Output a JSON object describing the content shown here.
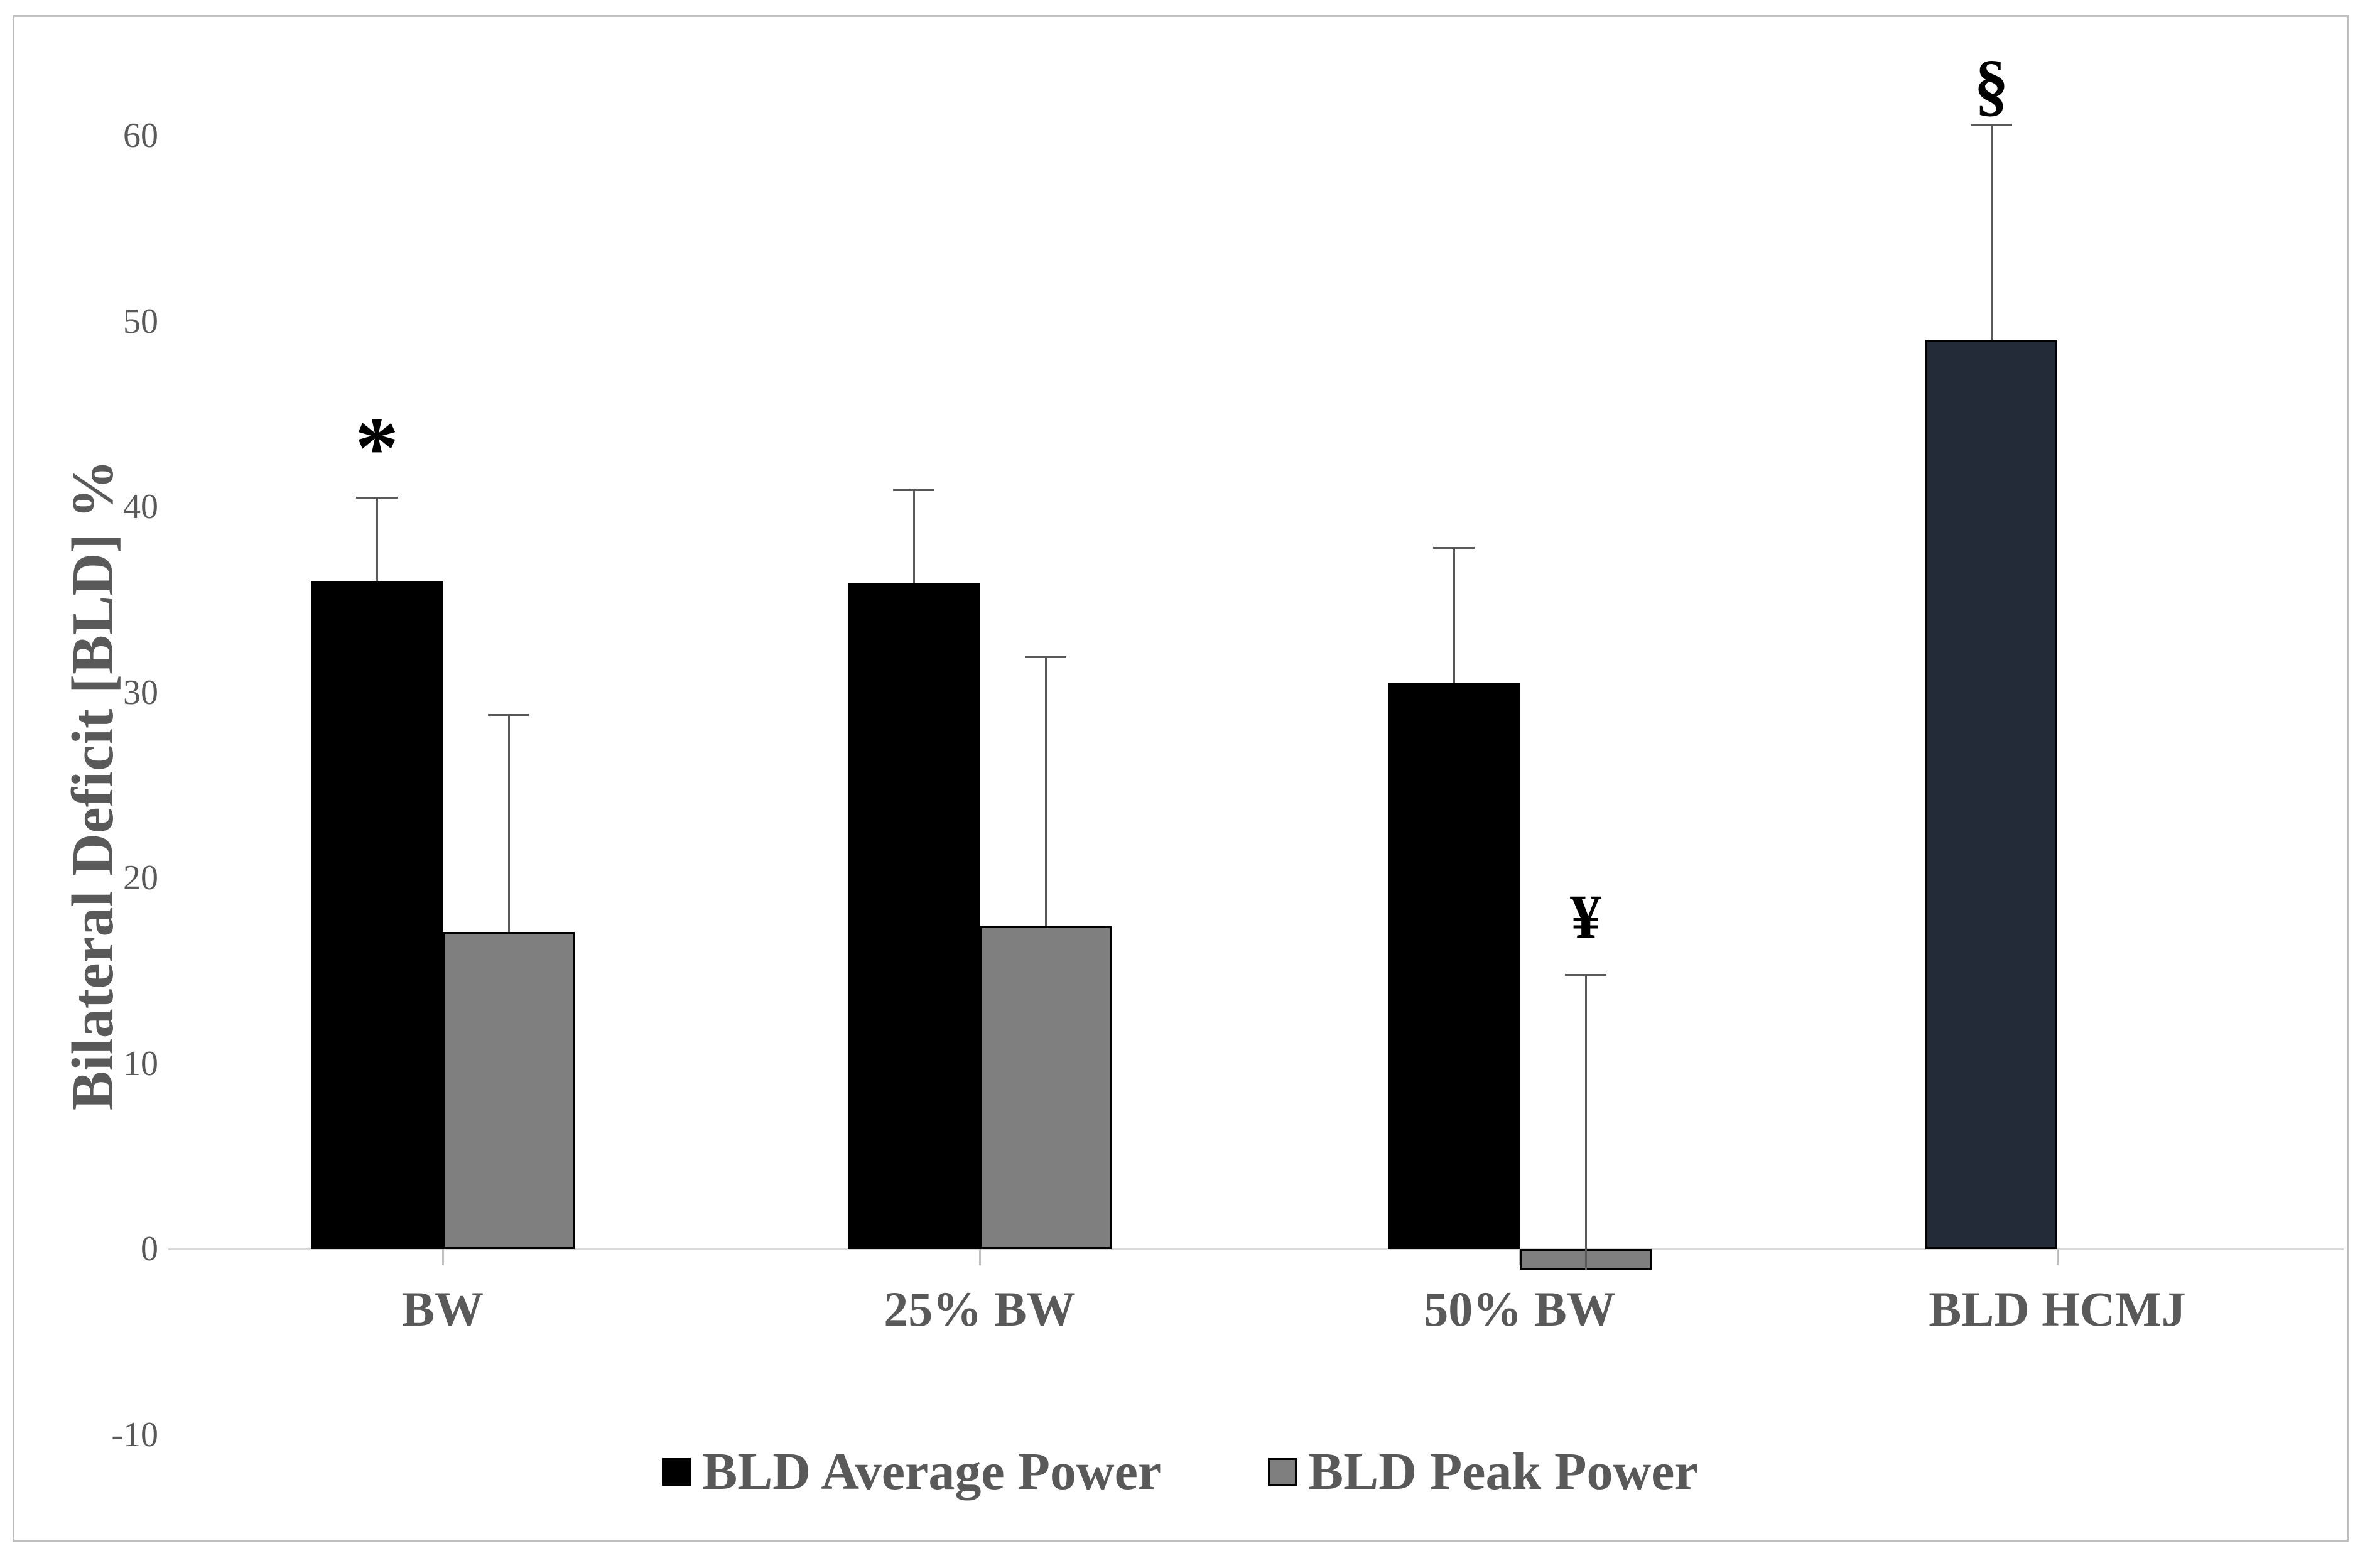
{
  "chart_data": {
    "type": "bar",
    "title": "",
    "xlabel": "",
    "ylabel": "Bilateral Deficit [BLD] %",
    "ylim": [
      -10,
      60
    ],
    "yticks": [
      60,
      50,
      40,
      30,
      20,
      10,
      0,
      -10
    ],
    "grid": false,
    "legend_position": "bottom",
    "categories": [
      "BW",
      "25% BW",
      "50% BW",
      "BLD HCMJ"
    ],
    "series": [
      {
        "name": "BLD Average Power",
        "color": "#000000",
        "point_colors": [
          null,
          null,
          null,
          "#242b38"
        ],
        "values": [
          36.0,
          35.9,
          30.5,
          49.0
        ],
        "error_plus": [
          4.5,
          5.0,
          7.3,
          11.6
        ]
      },
      {
        "name": "BLD Peak Power",
        "color": "#7f7f7f",
        "point_colors": [
          null,
          null,
          null,
          null
        ],
        "values": [
          17.1,
          17.4,
          -1.1,
          null
        ],
        "error_plus": [
          11.7,
          14.5,
          15.9,
          null
        ]
      }
    ],
    "annotations": [
      {
        "text": "*",
        "name": "asterisk",
        "category": 0,
        "series": 0
      },
      {
        "text": "¥",
        "name": "yen",
        "category": 2,
        "series": 1
      },
      {
        "text": "§",
        "name": "section",
        "category": 3,
        "series": 0
      }
    ],
    "colors": {
      "axis_line": "#d9d9d9",
      "tick": "#bfbfbf",
      "text": "#595959",
      "error_bar": "#595959",
      "frame_border": "#bfbfbf",
      "hcmj_bar": "#242b38"
    }
  }
}
